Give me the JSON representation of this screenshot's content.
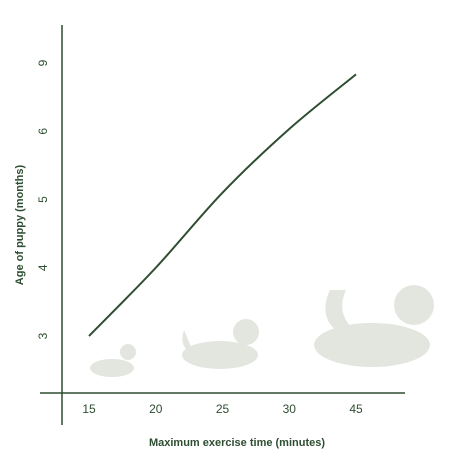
{
  "chart_data": {
    "type": "line",
    "xlabel": "Maximum exercise time (minutes)",
    "ylabel": "Age of puppy (months)",
    "categories": [
      "15",
      "20",
      "25",
      "30",
      "45"
    ],
    "series": [
      {
        "color": "#2e4d31",
        "values": [
          3.0,
          4.0,
          5.1,
          6.1,
          8.5
        ]
      }
    ],
    "yticks": [
      3,
      4,
      5,
      6,
      9
    ]
  }
}
